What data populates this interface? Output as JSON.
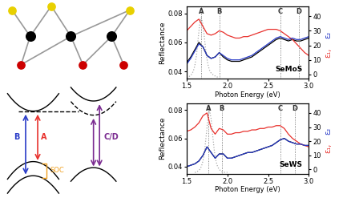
{
  "chart_data": [
    {
      "type": "line",
      "sample": "SeMoS",
      "xlabel": "Photon Energy (eV)",
      "ylabel": "Reflectance",
      "y2label": [
        {
          "text": "ε₁,",
          "color": "#e8312d"
        },
        {
          "text": "ε₂",
          "color": "#2a3cc8"
        }
      ],
      "xlim": [
        1.5,
        3.0
      ],
      "xticks": [
        1.5,
        2.0,
        2.5,
        3.0
      ],
      "ylim": [
        0.035,
        0.085
      ],
      "yticks": [
        0.04,
        0.06,
        0.08
      ],
      "y2lim": [
        -3,
        47
      ],
      "y2ticks": [
        0,
        10,
        20,
        30,
        40
      ],
      "vlines": [
        {
          "label": "A",
          "x": 1.68
        },
        {
          "label": "B",
          "x": 1.9
        },
        {
          "label": "C",
          "x": 2.65
        },
        {
          "label": "D",
          "x": 2.88
        }
      ],
      "x": [
        1.5,
        1.55,
        1.6,
        1.65,
        1.7,
        1.75,
        1.8,
        1.85,
        1.9,
        1.95,
        2.0,
        2.05,
        2.1,
        2.15,
        2.2,
        2.25,
        2.3,
        2.35,
        2.4,
        2.45,
        2.5,
        2.55,
        2.6,
        2.65,
        2.7,
        2.75,
        2.8,
        2.85,
        2.9,
        2.95,
        3.0
      ],
      "series": [
        {
          "color": "#aaaaaa",
          "line_style": "dotted",
          "x": [
            1.5,
            1.52,
            1.54,
            1.56,
            1.58,
            1.6,
            1.62,
            1.64,
            1.66,
            1.68,
            1.7,
            1.72,
            1.74,
            1.76,
            1.78,
            1.8,
            1.82,
            1.84,
            1.86,
            1.88,
            1.9
          ],
          "values": [
            0.036,
            0.036,
            0.037,
            0.038,
            0.04,
            0.044,
            0.051,
            0.062,
            0.073,
            0.077,
            0.072,
            0.062,
            0.052,
            0.045,
            0.041,
            0.039,
            0.038,
            0.037,
            0.037,
            0.036,
            0.036
          ]
        },
        {
          "color": "#e8312d",
          "line_style": "solid",
          "axis": "y2",
          "values": [
            30,
            33,
            36,
            38,
            33,
            28,
            27,
            28,
            30,
            29,
            27,
            26,
            25,
            25,
            26,
            26,
            27,
            28,
            29,
            30,
            31,
            31,
            31,
            30,
            28,
            26,
            24,
            21,
            18,
            15,
            13
          ]
        },
        {
          "color": "#2a3cc8",
          "line_style": "solid",
          "axis": "y2",
          "values": [
            7,
            11,
            16,
            21,
            19,
            13,
            11,
            12,
            15,
            13,
            11,
            10,
            10,
            10,
            11,
            12,
            13,
            15,
            17,
            19,
            21,
            23,
            25,
            26,
            25,
            24,
            25,
            24,
            24,
            25,
            26
          ]
        },
        {
          "color": "#000000",
          "line_style": "solid",
          "values": [
            0.046,
            0.05,
            0.055,
            0.06,
            0.057,
            0.051,
            0.049,
            0.05,
            0.053,
            0.05,
            0.048,
            0.047,
            0.047,
            0.047,
            0.048,
            0.049,
            0.05,
            0.052,
            0.054,
            0.056,
            0.058,
            0.06,
            0.062,
            0.063,
            0.062,
            0.061,
            0.062,
            0.061,
            0.061,
            0.062,
            0.063
          ]
        }
      ]
    },
    {
      "type": "line",
      "sample": "SeWS",
      "xlabel": "Photon Energy (eV)",
      "ylabel": "Reflectance",
      "y2label": [
        {
          "text": "ε₁,",
          "color": "#e8312d"
        },
        {
          "text": "ε₂",
          "color": "#2a3cc8"
        }
      ],
      "xlim": [
        1.5,
        3.0
      ],
      "xticks": [
        1.5,
        2.0,
        2.5,
        3.0
      ],
      "ylim": [
        0.035,
        0.085
      ],
      "yticks": [
        0.04,
        0.06,
        0.08
      ],
      "y2lim": [
        -3,
        47
      ],
      "y2ticks": [
        0,
        10,
        20,
        30,
        40
      ],
      "vlines": [
        {
          "label": "A",
          "x": 1.77
        },
        {
          "label": "B",
          "x": 1.93
        },
        {
          "label": "C",
          "x": 2.65
        },
        {
          "label": "D",
          "x": 2.83
        }
      ],
      "x": [
        1.5,
        1.55,
        1.6,
        1.65,
        1.7,
        1.75,
        1.8,
        1.85,
        1.9,
        1.95,
        2.0,
        2.05,
        2.1,
        2.15,
        2.2,
        2.25,
        2.3,
        2.35,
        2.4,
        2.45,
        2.5,
        2.55,
        2.6,
        2.65,
        2.7,
        2.75,
        2.8,
        2.85,
        2.9,
        2.95,
        3.0
      ],
      "series": [
        {
          "color": "#aaaaaa",
          "line_style": "dotted",
          "x": [
            1.6,
            1.62,
            1.64,
            1.66,
            1.68,
            1.7,
            1.72,
            1.74,
            1.76,
            1.78,
            1.8,
            1.82,
            1.84,
            1.86,
            1.88,
            1.9,
            1.92,
            1.94,
            1.96,
            1.98,
            2.0
          ],
          "values": [
            0.036,
            0.036,
            0.037,
            0.038,
            0.04,
            0.044,
            0.051,
            0.062,
            0.074,
            0.08,
            0.074,
            0.062,
            0.051,
            0.044,
            0.04,
            0.038,
            0.037,
            0.036,
            0.036,
            0.036,
            0.036
          ]
        },
        {
          "color": "#e8312d",
          "line_style": "solid",
          "axis": "y2",
          "values": [
            27,
            28,
            30,
            33,
            38,
            40,
            29,
            25,
            29,
            28,
            25,
            25,
            26,
            26,
            27,
            27,
            28,
            28,
            29,
            29,
            30,
            30,
            31,
            31,
            29,
            25,
            22,
            20,
            18,
            17,
            16
          ]
        },
        {
          "color": "#2a3cc8",
          "line_style": "solid",
          "axis": "y2",
          "values": [
            2,
            3,
            4,
            6,
            10,
            16,
            12,
            8,
            11,
            11,
            8,
            8,
            9,
            10,
            11,
            12,
            12,
            13,
            14,
            15,
            16,
            17,
            19,
            21,
            22,
            20,
            19,
            18,
            18,
            17,
            17
          ]
        },
        {
          "color": "#000000",
          "line_style": "solid",
          "values": [
            0.04,
            0.041,
            0.042,
            0.044,
            0.048,
            0.054,
            0.05,
            0.046,
            0.049,
            0.049,
            0.046,
            0.046,
            0.047,
            0.048,
            0.049,
            0.05,
            0.05,
            0.051,
            0.052,
            0.053,
            0.054,
            0.055,
            0.057,
            0.059,
            0.06,
            0.058,
            0.057,
            0.056,
            0.056,
            0.055,
            0.055
          ]
        }
      ]
    }
  ],
  "band_diagram": {
    "transitions": [
      {
        "label": "A",
        "color": "#e8312d"
      },
      {
        "label": "B",
        "color": "#2a3cc8"
      },
      {
        "label": "C/D",
        "color": "#7b2c91"
      }
    ],
    "soc": {
      "label": "SOC",
      "color": "#f0a020"
    }
  }
}
